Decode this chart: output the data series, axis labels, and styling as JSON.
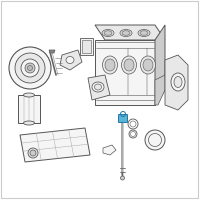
{
  "bg_color": "#ffffff",
  "border_color": "#cccccc",
  "line_color": "#555555",
  "highlight_color": "#5ab4d6",
  "light_fill": "#f5f5f5",
  "mid_fill": "#e8e8e8",
  "dark_fill": "#cccccc",
  "shadow_fill": "#bbbbbb"
}
